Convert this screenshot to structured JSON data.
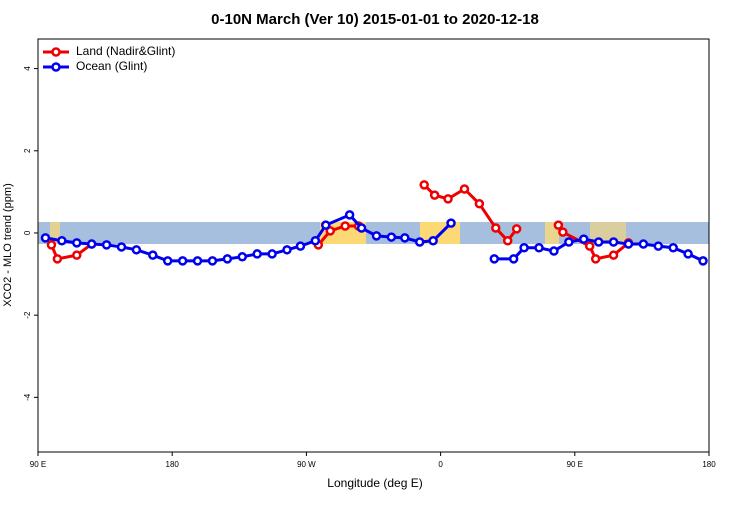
{
  "chart_data": {
    "type": "line",
    "title": "0-10N March (Ver 10)   2015-01-01 to 2020-12-18",
    "xlabel": "Longitude (deg E)",
    "ylabel": "XCO2 - MLO trend (ppm)",
    "xlim": [
      90,
      540
    ],
    "xticks": [
      {
        "value": 90,
        "label": "90 E"
      },
      180,
      {
        "value": 270,
        "label": "90 W"
      },
      {
        "value": 360,
        "label": "0"
      },
      {
        "value": 450,
        "label": "90 E"
      },
      {
        "value": 540,
        "label": "180"
      }
    ],
    "ylim": [
      -5.33,
      4.72
    ],
    "yticks": [
      -4,
      -2,
      0,
      2,
      4
    ],
    "legend": "top-left",
    "series": [
      {
        "name": "Land (Nadir&Glint)",
        "color": "#ee0000",
        "x": [
          99,
          103,
          116,
          126,
          null,
          278,
          286,
          296,
          305,
          null,
          349,
          356,
          365,
          376,
          386,
          397,
          405,
          411,
          null,
          439,
          442,
          460,
          464,
          476,
          486
        ],
        "values": [
          -0.29,
          -0.63,
          -0.54,
          -0.27,
          null,
          -0.29,
          0.05,
          0.17,
          0.17,
          null,
          1.17,
          0.92,
          0.83,
          1.07,
          0.71,
          0.12,
          -0.19,
          0.1,
          null,
          0.19,
          0.02,
          -0.32,
          -0.63,
          -0.54,
          -0.24
        ]
      },
      {
        "name": "Ocean (Glint)",
        "color": "#0000ee",
        "x": [
          95,
          106,
          116,
          126,
          136,
          146,
          156,
          167,
          177,
          187,
          197,
          207,
          217,
          227,
          237,
          247,
          257,
          266,
          276,
          283,
          299,
          307,
          317,
          327,
          336,
          346,
          355,
          367,
          null,
          396,
          409,
          416,
          426,
          436,
          446,
          456,
          466,
          476,
          486,
          496,
          506,
          516,
          526,
          536
        ],
        "values": [
          -0.12,
          -0.19,
          -0.24,
          -0.27,
          -0.29,
          -0.34,
          -0.41,
          -0.54,
          -0.68,
          -0.68,
          -0.68,
          -0.68,
          -0.63,
          -0.58,
          -0.51,
          -0.51,
          -0.41,
          -0.32,
          -0.19,
          0.19,
          0.44,
          0.12,
          -0.07,
          -0.1,
          -0.12,
          -0.22,
          -0.19,
          0.24,
          null,
          -0.63,
          -0.63,
          -0.36,
          -0.36,
          -0.44,
          -0.22,
          -0.15,
          -0.22,
          -0.22,
          -0.27,
          -0.27,
          -0.32,
          -0.36,
          -0.51,
          -0.68
        ]
      }
    ]
  }
}
